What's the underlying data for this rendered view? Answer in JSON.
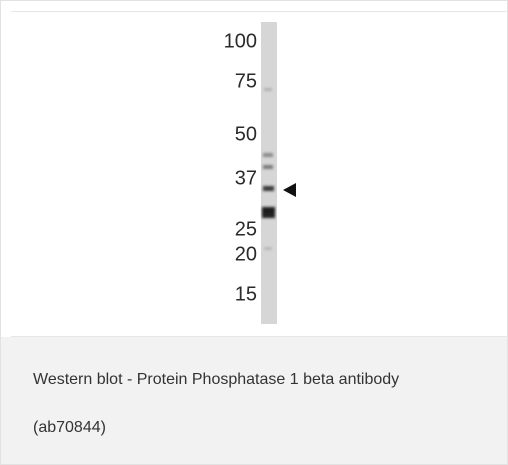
{
  "figure": {
    "markers": [
      "100",
      "75",
      "50",
      "37",
      "25",
      "20",
      "15"
    ],
    "caption": [
      "Western blot - Protein Phosphatase 1 beta antibody",
      "(ab70844)"
    ]
  }
}
